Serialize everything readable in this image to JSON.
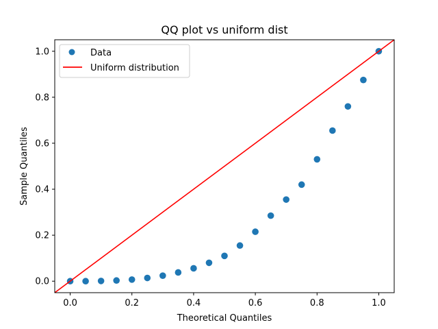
{
  "chart_data": {
    "type": "scatter",
    "title": "QQ plot vs uniform dist",
    "xlabel": "Theoretical Quantiles",
    "ylabel": "Sample Quantiles",
    "xlim": [
      -0.05,
      1.05
    ],
    "ylim": [
      -0.05,
      1.05
    ],
    "xticks": [
      0.0,
      0.2,
      0.4,
      0.6,
      0.8,
      1.0
    ],
    "yticks": [
      0.0,
      0.2,
      0.4,
      0.6,
      0.8,
      1.0
    ],
    "xtick_labels": [
      "0.0",
      "0.2",
      "0.4",
      "0.6",
      "0.8",
      "1.0"
    ],
    "ytick_labels": [
      "0.0",
      "0.2",
      "0.4",
      "0.6",
      "0.8",
      "1.0"
    ],
    "grid": false,
    "legend": {
      "position": "top-left",
      "entries": [
        "Data",
        "Uniform distribution"
      ]
    },
    "series": [
      {
        "name": "Data",
        "kind": "scatter",
        "color": "#1f77b4",
        "x": [
          0.0,
          0.05,
          0.1,
          0.15,
          0.2,
          0.25,
          0.3,
          0.35,
          0.4,
          0.45,
          0.5,
          0.55,
          0.6,
          0.65,
          0.7,
          0.75,
          0.8,
          0.85,
          0.9,
          0.95,
          1.0
        ],
        "y": [
          0.0,
          0.0,
          0.001,
          0.003,
          0.007,
          0.014,
          0.024,
          0.038,
          0.056,
          0.08,
          0.11,
          0.155,
          0.215,
          0.285,
          0.355,
          0.42,
          0.53,
          0.655,
          0.76,
          0.875,
          1.0
        ]
      },
      {
        "name": "Uniform distribution",
        "kind": "line",
        "color": "#ff0000",
        "x": [
          -0.05,
          1.05
        ],
        "y": [
          -0.05,
          1.05
        ]
      }
    ]
  }
}
